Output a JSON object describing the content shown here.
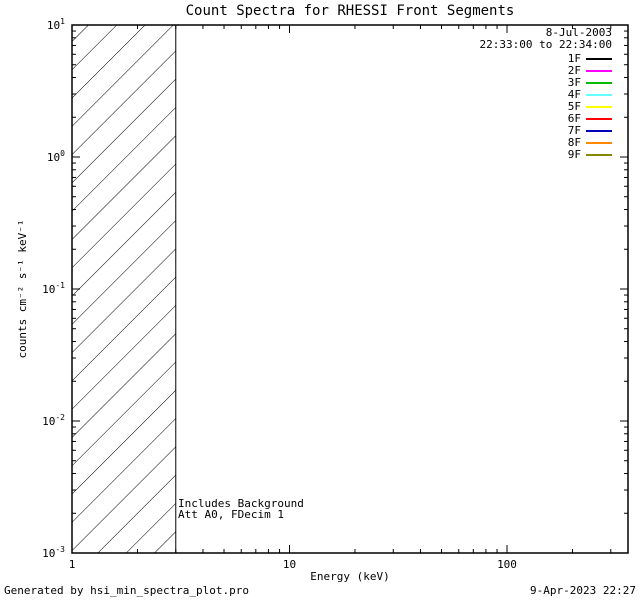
{
  "window": {
    "background": "#ffffff",
    "foreground": "#000000"
  },
  "chart_data": {
    "type": "line",
    "title": "Count Spectra for RHESSI Front Segments",
    "xlabel": "Energy (keV)",
    "ylabel": "counts cm⁻² s⁻¹ keV⁻¹",
    "x_scale": "log",
    "y_scale": "log",
    "xlim": [
      1,
      360
    ],
    "ylim": [
      0.001,
      10
    ],
    "x_major_ticks": [
      1,
      10,
      100
    ],
    "y_major_ticks": [
      10,
      1,
      0.1,
      0.01,
      0.001
    ],
    "grid": false,
    "hatch_region": {
      "x0": 1,
      "x1": 3
    },
    "series": [],
    "legend": {
      "position": "top-right",
      "date": "8-Jul-2003",
      "time_range": "22:33:00 to 22:34:00",
      "entries": [
        {
          "label": "1F",
          "color": "#000000"
        },
        {
          "label": "2F",
          "color": "#ff00ff"
        },
        {
          "label": "3F",
          "color": "#00bb00"
        },
        {
          "label": "4F",
          "color": "#66ffff"
        },
        {
          "label": "5F",
          "color": "#ffff00"
        },
        {
          "label": "6F",
          "color": "#ff0000"
        },
        {
          "label": "7F",
          "color": "#0000bb"
        },
        {
          "label": "8F",
          "color": "#ff8800"
        },
        {
          "label": "9F",
          "color": "#888800"
        }
      ]
    },
    "annotations": [
      "Includes Background",
      "Att A0, FDecim 1"
    ],
    "footer_left": "Generated by hsi_min_spectra_plot.pro",
    "footer_right": "9-Apr-2023 22:27"
  }
}
